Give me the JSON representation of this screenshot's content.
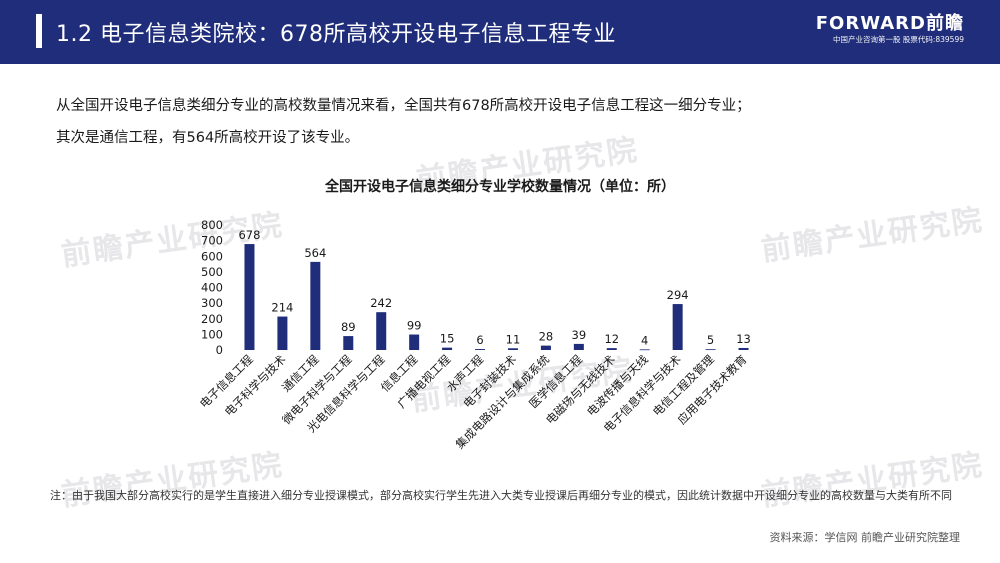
{
  "header": {
    "title": "1.2 电子信息类院校：678所高校开设电子信息工程专业",
    "logo": "FORWARD前瞻",
    "logo_sub": "中国产业咨询第一股  股票代码:839599"
  },
  "intro": {
    "line1": "从全国开设电子信息类细分专业的高校数量情况来看，全国共有678所高校开设电子信息工程这一细分专业；",
    "line2": "其次是通信工程，有564所高校开设了该专业。"
  },
  "watermark": "前瞻产业研究院",
  "chart_data": {
    "type": "bar",
    "title": "全国开设电子信息类细分专业学校数量情况（单位：所）",
    "categories": [
      "电子信息工程",
      "电子科学与技术",
      "通信工程",
      "微电子科学与工程",
      "光电信息科学与工程",
      "信息工程",
      "广播电视工程",
      "水声工程",
      "电子封装技术",
      "集成电路设计与集成系统",
      "医学信息工程",
      "电磁场与无线技术",
      "电波传播与天线",
      "电子信息科学与技术",
      "电信工程及管理",
      "应用电子技术教育"
    ],
    "values": [
      678,
      214,
      564,
      89,
      242,
      99,
      15,
      6,
      11,
      28,
      39,
      12,
      4,
      294,
      5,
      13
    ],
    "ylim": [
      0,
      800
    ],
    "yticks": [
      0,
      100,
      200,
      300,
      400,
      500,
      600,
      700,
      800
    ],
    "grid": false,
    "color": "#1f2d7a"
  },
  "footer": {
    "note": "注：由于我国大部分高校实行的是学生直接进入细分专业授课模式，部分高校实行学生先进入大类专业授课后再细分专业的模式，因此统计数据中开设细分专业的高校数量与大类有所不同",
    "source": "资料来源：学信网 前瞻产业研究院整理"
  }
}
